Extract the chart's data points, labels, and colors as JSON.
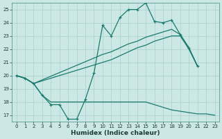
{
  "xlabel": "Humidex (Indice chaleur)",
  "background_color": "#cce8e4",
  "grid_color": "#aacfcb",
  "line_color": "#1a7a6e",
  "xlim": [
    -0.5,
    23.5
  ],
  "ylim": [
    16.5,
    25.5
  ],
  "yticks": [
    17,
    18,
    19,
    20,
    21,
    22,
    23,
    24,
    25
  ],
  "xticks": [
    0,
    1,
    2,
    3,
    4,
    5,
    6,
    7,
    8,
    9,
    10,
    11,
    12,
    13,
    14,
    15,
    16,
    17,
    18,
    19,
    20,
    21,
    22,
    23
  ],
  "line_jagged_x": [
    0,
    1,
    2,
    3,
    4,
    5,
    6,
    7,
    8,
    9,
    10,
    11,
    12,
    13,
    14,
    15,
    16,
    17,
    18,
    19,
    20,
    21
  ],
  "line_jagged_y": [
    20.0,
    19.8,
    19.4,
    18.5,
    17.8,
    17.8,
    16.7,
    16.7,
    18.2,
    20.2,
    23.8,
    23.0,
    24.4,
    25.0,
    25.0,
    25.5,
    24.1,
    24.0,
    24.2,
    23.1,
    22.1,
    20.7
  ],
  "line_upper_diag_x": [
    0,
    1,
    2,
    10,
    11,
    12,
    13,
    14,
    15,
    16,
    17,
    18,
    19,
    20,
    21
  ],
  "line_upper_diag_y": [
    20.0,
    19.8,
    19.4,
    21.6,
    21.8,
    22.1,
    22.4,
    22.6,
    22.9,
    23.1,
    23.3,
    23.5,
    23.1,
    22.1,
    20.7
  ],
  "line_lower_diag_x": [
    0,
    1,
    2,
    10,
    11,
    12,
    13,
    14,
    15,
    16,
    17,
    18,
    19,
    20,
    21
  ],
  "line_lower_diag_y": [
    20.0,
    19.8,
    19.4,
    21.0,
    21.2,
    21.5,
    21.8,
    22.1,
    22.3,
    22.6,
    22.8,
    23.0,
    23.0,
    22.0,
    20.7
  ],
  "line_flat_x": [
    0,
    1,
    2,
    3,
    4,
    5,
    6,
    7,
    8,
    9,
    10,
    11,
    12,
    13,
    14,
    15,
    16,
    17,
    18,
    19,
    20,
    21,
    22,
    23
  ],
  "line_flat_y": [
    20.0,
    19.8,
    19.4,
    18.5,
    18.0,
    18.0,
    18.0,
    18.0,
    18.0,
    18.0,
    18.0,
    18.0,
    18.0,
    18.0,
    18.0,
    18.0,
    17.8,
    17.6,
    17.4,
    17.3,
    17.2,
    17.1,
    17.1,
    17.0
  ]
}
